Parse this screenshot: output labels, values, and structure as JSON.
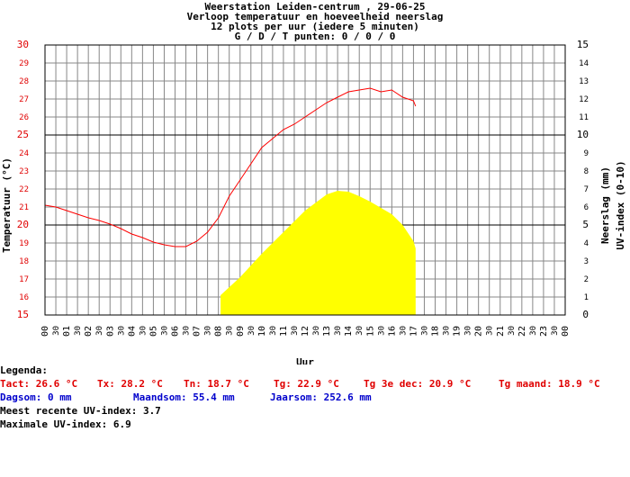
{
  "chart_data": {
    "type": "line",
    "title_lines": [
      "Weerstation Leiden-centrum , 29-06-25",
      "Verloop temperatuur en hoeveelheid neerslag",
      "12 plots per uur (iedere 5 minuten)",
      "G / D / T punten: 0 / 0 / 0"
    ],
    "xlabel": "Uur",
    "ylabel_left": "Temperatuur (°C)",
    "ylabel_right_1": "Neerslag (mm)",
    "ylabel_right_2": "UV-index (0-10)",
    "x_ticks_hours": [
      "00",
      "01",
      "02",
      "03",
      "04",
      "05",
      "06",
      "07",
      "08",
      "09",
      "10",
      "11",
      "12",
      "13",
      "14",
      "15",
      "16",
      "17",
      "18",
      "19",
      "20",
      "21",
      "22",
      "23",
      "00"
    ],
    "x_ticks_half": "30",
    "y_left_ticks": [
      "15",
      "16",
      "17",
      "18",
      "19",
      "20",
      "21",
      "22",
      "23",
      "24",
      "25",
      "26",
      "27",
      "28",
      "29",
      "30"
    ],
    "y_right_ticks": [
      "0",
      "1",
      "2",
      "3",
      "4",
      "5",
      "6",
      "7",
      "8",
      "9",
      "10",
      "11",
      "12",
      "13",
      "14",
      "15"
    ],
    "ylim_left": [
      15,
      30
    ],
    "ylim_right": [
      0,
      15
    ],
    "xlim_hours": [
      0,
      24
    ],
    "grid": true,
    "series": [
      {
        "color": "#ff0000",
        "x": [
          0.0,
          0.5,
          1.0,
          1.5,
          2.0,
          2.5,
          3.0,
          3.5,
          4.0,
          4.5,
          5.0,
          5.5,
          6.0,
          6.5,
          7.0,
          7.5,
          8.0,
          8.5,
          9.0,
          9.5,
          10.0,
          10.5,
          11.0,
          11.5,
          12.0,
          12.5,
          13.0,
          13.5,
          14.0,
          14.5,
          15.0,
          15.5,
          16.0,
          16.5,
          17.0,
          17.1
        ],
        "y": [
          21.1,
          21.0,
          20.8,
          20.6,
          20.4,
          20.25,
          20.05,
          19.8,
          19.5,
          19.3,
          19.05,
          18.9,
          18.8,
          18.8,
          19.1,
          19.6,
          20.4,
          21.6,
          22.5,
          23.4,
          24.3,
          24.8,
          25.3,
          25.6,
          26.0,
          26.4,
          26.8,
          27.1,
          27.4,
          27.5,
          27.6,
          27.4,
          27.5,
          27.1,
          26.9,
          26.6
        ]
      },
      {
        "color": "#ffff00",
        "x": [
          8.1,
          9.0,
          10.0,
          11.0,
          12.0,
          13.0,
          13.5,
          14.0,
          14.5,
          15.0,
          16.0,
          16.5,
          17.0,
          17.1
        ],
        "y": [
          1.1,
          2.1,
          3.4,
          4.6,
          5.8,
          6.7,
          6.9,
          6.85,
          6.6,
          6.3,
          5.6,
          5.0,
          4.1,
          3.7
        ]
      }
    ]
  },
  "legend": {
    "title": "Legenda:",
    "row1": [
      "Tact: 26.6 °C",
      "Tx: 28.2 °C",
      "Tn: 18.7 °C",
      "Tg: 22.9 °C",
      "Tg 3e dec: 20.9 °C",
      "Tg maand: 18.9 °C"
    ],
    "row2": [
      "Dagsom: 0 mm",
      "Maandsom: 55.4 mm",
      "Jaarsom: 252.6 mm"
    ],
    "uv_recent": "Meest recente UV-index: 3.7",
    "uv_max": "Maximale UV-index: 6.9"
  }
}
